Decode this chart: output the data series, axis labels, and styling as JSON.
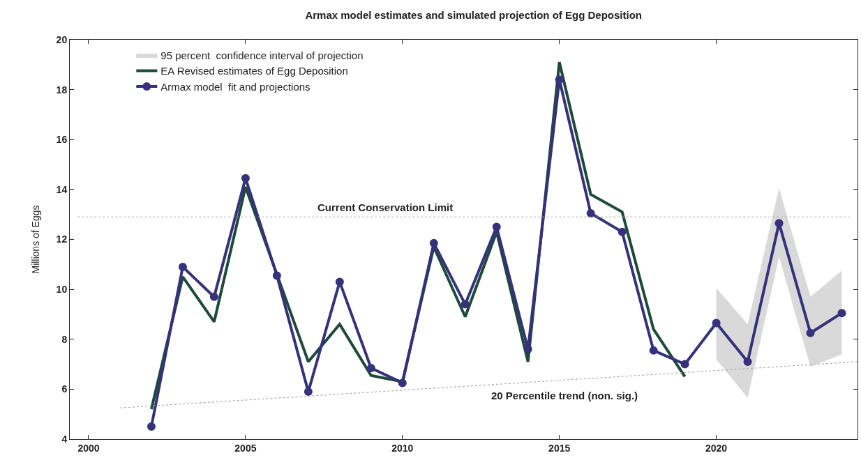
{
  "chart_data": {
    "type": "line",
    "title": "Armax model estimates and simulated projection of Egg Deposition",
    "ylabel": "Millions of Eggs",
    "xlim": [
      1999.4,
      2024.5
    ],
    "xticks": [
      2000,
      2005,
      2010,
      2015,
      2020
    ],
    "ylim": [
      4,
      20
    ],
    "yticks": [
      4,
      6,
      8,
      10,
      12,
      14,
      16,
      18,
      20
    ],
    "legend": "top left",
    "series": [
      {
        "name": "95 percent  confidence interval of projection",
        "type": "line",
        "color": "#d9d9d9",
        "x": [
          2020,
          2021,
          2022,
          2023,
          2024
        ],
        "values": [
          null,
          null,
          null,
          null,
          null
        ],
        "lower": [
          7.2,
          5.65,
          11.3,
          6.9,
          7.4
        ],
        "upper": [
          10.05,
          8.6,
          14.05,
          9.7,
          10.75
        ]
      },
      {
        "name": "EA Revised estimates of Egg Deposition",
        "color": "#1e4a3a",
        "marker": "none",
        "x": [
          2002,
          2003,
          2004,
          2005,
          2006,
          2007,
          2008,
          2009,
          2010,
          2011,
          2012,
          2013,
          2014,
          2015,
          2016,
          2017,
          2018,
          2019
        ],
        "values": [
          5.2,
          10.5,
          8.7,
          14.1,
          10.6,
          7.1,
          8.6,
          6.55,
          6.3,
          11.7,
          8.9,
          12.3,
          7.1,
          19.1,
          13.8,
          13.1,
          8.4,
          6.5
        ]
      },
      {
        "name": "Armax model  fit and projections",
        "type": "line",
        "color": "#35317a",
        "marker": "circle",
        "x": [
          2002,
          2003,
          2004,
          2005,
          2006,
          2007,
          2008,
          2009,
          2010,
          2011,
          2012,
          2013,
          2014,
          2015,
          2016,
          2017,
          2018,
          2019,
          2020,
          2021,
          2022,
          2023,
          2024
        ],
        "values": [
          4.5,
          10.9,
          9.7,
          14.45,
          10.55,
          5.9,
          10.3,
          6.85,
          6.25,
          11.85,
          9.4,
          12.5,
          7.6,
          18.4,
          13.05,
          12.3,
          7.55,
          7.0,
          8.65,
          7.1,
          12.65,
          8.25,
          9.05
        ]
      },
      {
        "type": "line",
        "color": "#aaaaaa",
        "line_style": "dotted",
        "marker": "none",
        "x": [
          2001,
          2024.5
        ],
        "values": [
          5.25,
          7.1
        ]
      }
    ],
    "ref_lines": [
      {
        "axis": "y",
        "value": 12.9,
        "label": "Current Conservation Limit",
        "color": "#aaaaaa",
        "line_style": "dotted"
      }
    ],
    "annotations": [
      "20 Percentile trend (non. sig.)"
    ]
  }
}
